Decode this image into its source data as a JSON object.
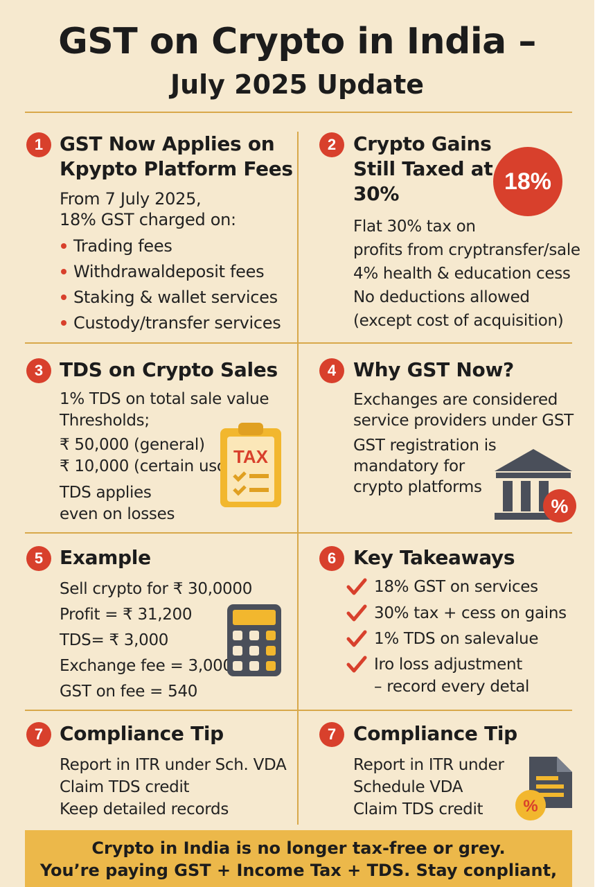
{
  "title": {
    "line1": "GST on Crypto in India –",
    "line2": "July 2025 Update"
  },
  "sections": [
    {
      "number": "1",
      "heading_lines": [
        "GST Now Applies on",
        "Крypto Platform Fees"
      ],
      "intro_lines": [
        "From 7 July 2025,",
        "18% GST charged on:"
      ],
      "bullets": [
        "Trading fees",
        "Withdrawaldeposit fees",
        "Staking & wallet services",
        "Custody/transfer services"
      ]
    },
    {
      "number": "2",
      "heading_lines": [
        "Crypto Gains",
        "Still Taxed at",
        "30%"
      ],
      "badge_label": "18%",
      "lines": [
        "Flat 30% tax on",
        "profits from cryptransfer/sale",
        "4% health & education cess",
        "No deductions allowed",
        "(except cost of acquisition)"
      ]
    },
    {
      "number": "3",
      "heading": "TDS on Crypto Sales",
      "lines": [
        "1% TDS on total sale value",
        "Thresholds;",
        "₹ 50,000 (general)",
        "₹ 10,000 (certain usc",
        "TDS applies",
        "even on losses"
      ],
      "icon_label": "TAX",
      "icon": "clipboard-tax-icon"
    },
    {
      "number": "4",
      "heading": "Why GST Now?",
      "lines": [
        "Exchanges are considered",
        "service providers under GST",
        "GST registration is",
        "mandatory for",
        "crypto platforms"
      ],
      "icon": "bank-percent-icon"
    },
    {
      "number": "5",
      "heading": "Example",
      "lines": [
        "Sell crypto for ₹ 30,0000",
        "Profit = ₹ 31,200",
        "TDS= ₹ 3,000",
        "Exchange fee = 3,000",
        "GST on fee = 540"
      ],
      "icon": "calculator-icon"
    },
    {
      "number": "6",
      "heading": "Key Takeaways",
      "checks": [
        "18% GST on services",
        "30% tax + cess on gains",
        "1% TDS on salevalue",
        "Iro loss adjustment"
      ],
      "extra_line": "– record every detal"
    },
    {
      "number": "7",
      "heading": "Compliance Tip",
      "lines": [
        "Report in ITR under Sch. VDA",
        "Claim TDS credit",
        "Keep detailed records"
      ]
    },
    {
      "number": "7",
      "heading": "Compliance Tip",
      "lines": [
        "Report in ITR under",
        "Schedule VDA",
        "Claim TDS credit"
      ],
      "icon": "document-percent-icon"
    }
  ],
  "footer": {
    "line1": "Crypto in India is no longer tax-free or grey.",
    "line2": "You’re paying GST + Income Tax + TDS. Stay conpliant,"
  },
  "colors": {
    "background": "#f6e9cf",
    "accent_red": "#d8402c",
    "accent_gold": "#ecb84a",
    "divider": "#d8a84a",
    "icon_dark": "#4a4f5a"
  }
}
